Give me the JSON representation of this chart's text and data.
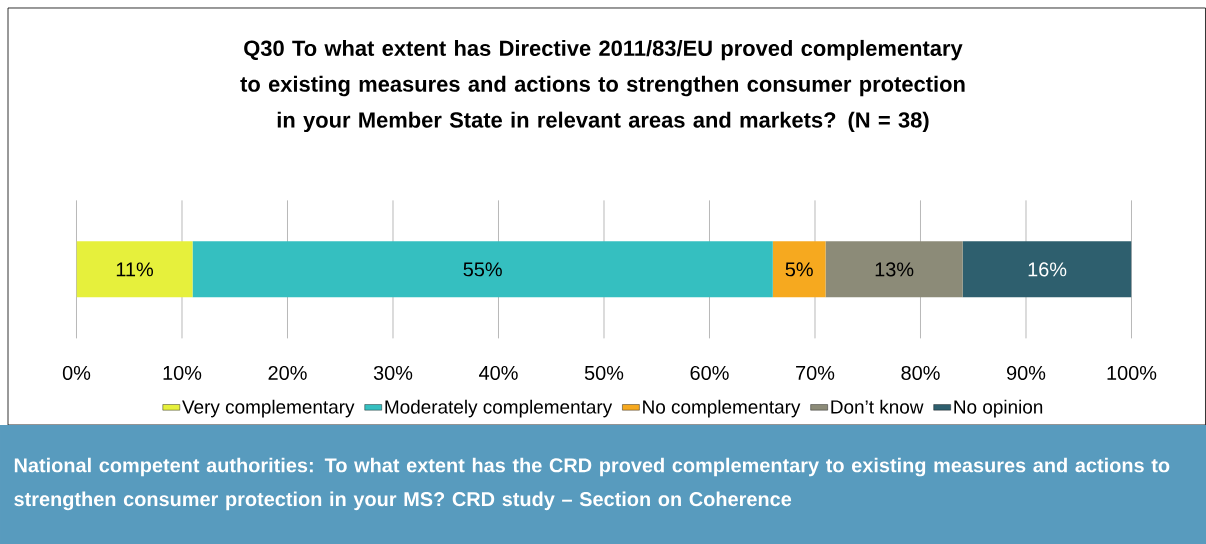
{
  "chart_data": {
    "type": "bar",
    "orientation": "horizontal",
    "stacked": true,
    "title": "Q30 To what extent has Directive 2011/83/EU proved complementary to existing measures and actions to strengthen consumer protection in your Member State in relevant areas and markets? (N = 38)",
    "categories": [
      null
    ],
    "series": [
      {
        "name": "Very complementary",
        "color": "#e6f03c",
        "values": [
          11
        ],
        "value_labels": [
          "11%"
        ]
      },
      {
        "name": "Moderately complementary",
        "color": "#35bfc0",
        "values": [
          55
        ],
        "value_labels": [
          "55%"
        ]
      },
      {
        "name": "No complementary",
        "color": "#f6a91f",
        "values": [
          5
        ],
        "value_labels": [
          "5%"
        ]
      },
      {
        "name": "Don’t know",
        "color": "#8c8b78",
        "values": [
          13
        ],
        "value_labels": [
          "13%"
        ]
      },
      {
        "name": "No opinion",
        "color": "#2e5f6e",
        "values": [
          16
        ],
        "value_labels": [
          "16%"
        ]
      }
    ],
    "xlim": [
      0,
      100
    ],
    "xticks": [
      {
        "value": 0,
        "label": "0%"
      },
      {
        "value": 10,
        "label": "10%"
      },
      {
        "value": 20,
        "label": "20%"
      },
      {
        "value": 30,
        "label": "30%"
      },
      {
        "value": 40,
        "label": "40%"
      },
      {
        "value": 50,
        "label": "50%"
      },
      {
        "value": 60,
        "label": "60%"
      },
      {
        "value": 70,
        "label": "70%"
      },
      {
        "value": 80,
        "label": "80%"
      },
      {
        "value": 90,
        "label": "90%"
      },
      {
        "value": 100,
        "label": "100%"
      }
    ],
    "grid": "x",
    "legend": "bottom",
    "annotations": [
      "National competent authorities: To what extent has the CRD proved complementary to existing measures and actions to strengthen consumer protection in your MS? CRD study – Section on Coherence"
    ]
  }
}
